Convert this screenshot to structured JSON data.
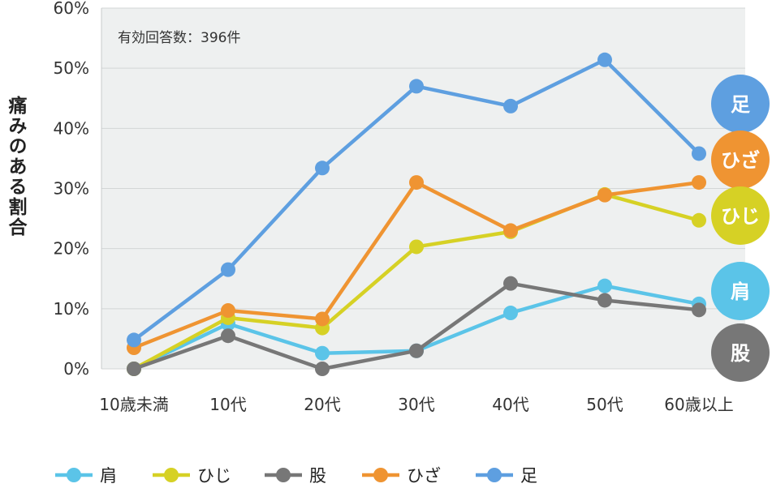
{
  "chart_data": {
    "type": "line",
    "categories": [
      "10歳未満",
      "10代",
      "20代",
      "30代",
      "40代",
      "50代",
      "60歳以上"
    ],
    "ylabel": "痛みのある割合",
    "ylim": [
      0,
      60
    ],
    "yticks": [
      "0%",
      "10%",
      "20%",
      "30%",
      "40%",
      "50%",
      "60%"
    ],
    "grid": true,
    "legend_position": "bottom",
    "annotation": "有効回答数：396件",
    "series": [
      {
        "name": "肩",
        "color": "#5bc4e8",
        "values": [
          0,
          7.5,
          2.6,
          3.0,
          9.3,
          13.8,
          10.8
        ]
      },
      {
        "name": "ひじ",
        "color": "#d6d125",
        "values": [
          0,
          8.5,
          6.8,
          20.3,
          22.8,
          29.0,
          24.7
        ]
      },
      {
        "name": "股",
        "color": "#777777",
        "values": [
          0,
          5.5,
          0,
          3.0,
          14.2,
          11.4,
          9.8
        ]
      },
      {
        "name": "ひざ",
        "color": "#ef9432",
        "values": [
          3.5,
          9.7,
          8.3,
          31.0,
          23.0,
          28.9,
          31.0
        ]
      },
      {
        "name": "足",
        "color": "#5e9fe0",
        "values": [
          4.8,
          16.5,
          33.4,
          47.0,
          43.7,
          51.4,
          35.8
        ]
      }
    ],
    "end_labels_order": [
      "足",
      "ひざ",
      "ひじ",
      "肩",
      "股"
    ]
  }
}
